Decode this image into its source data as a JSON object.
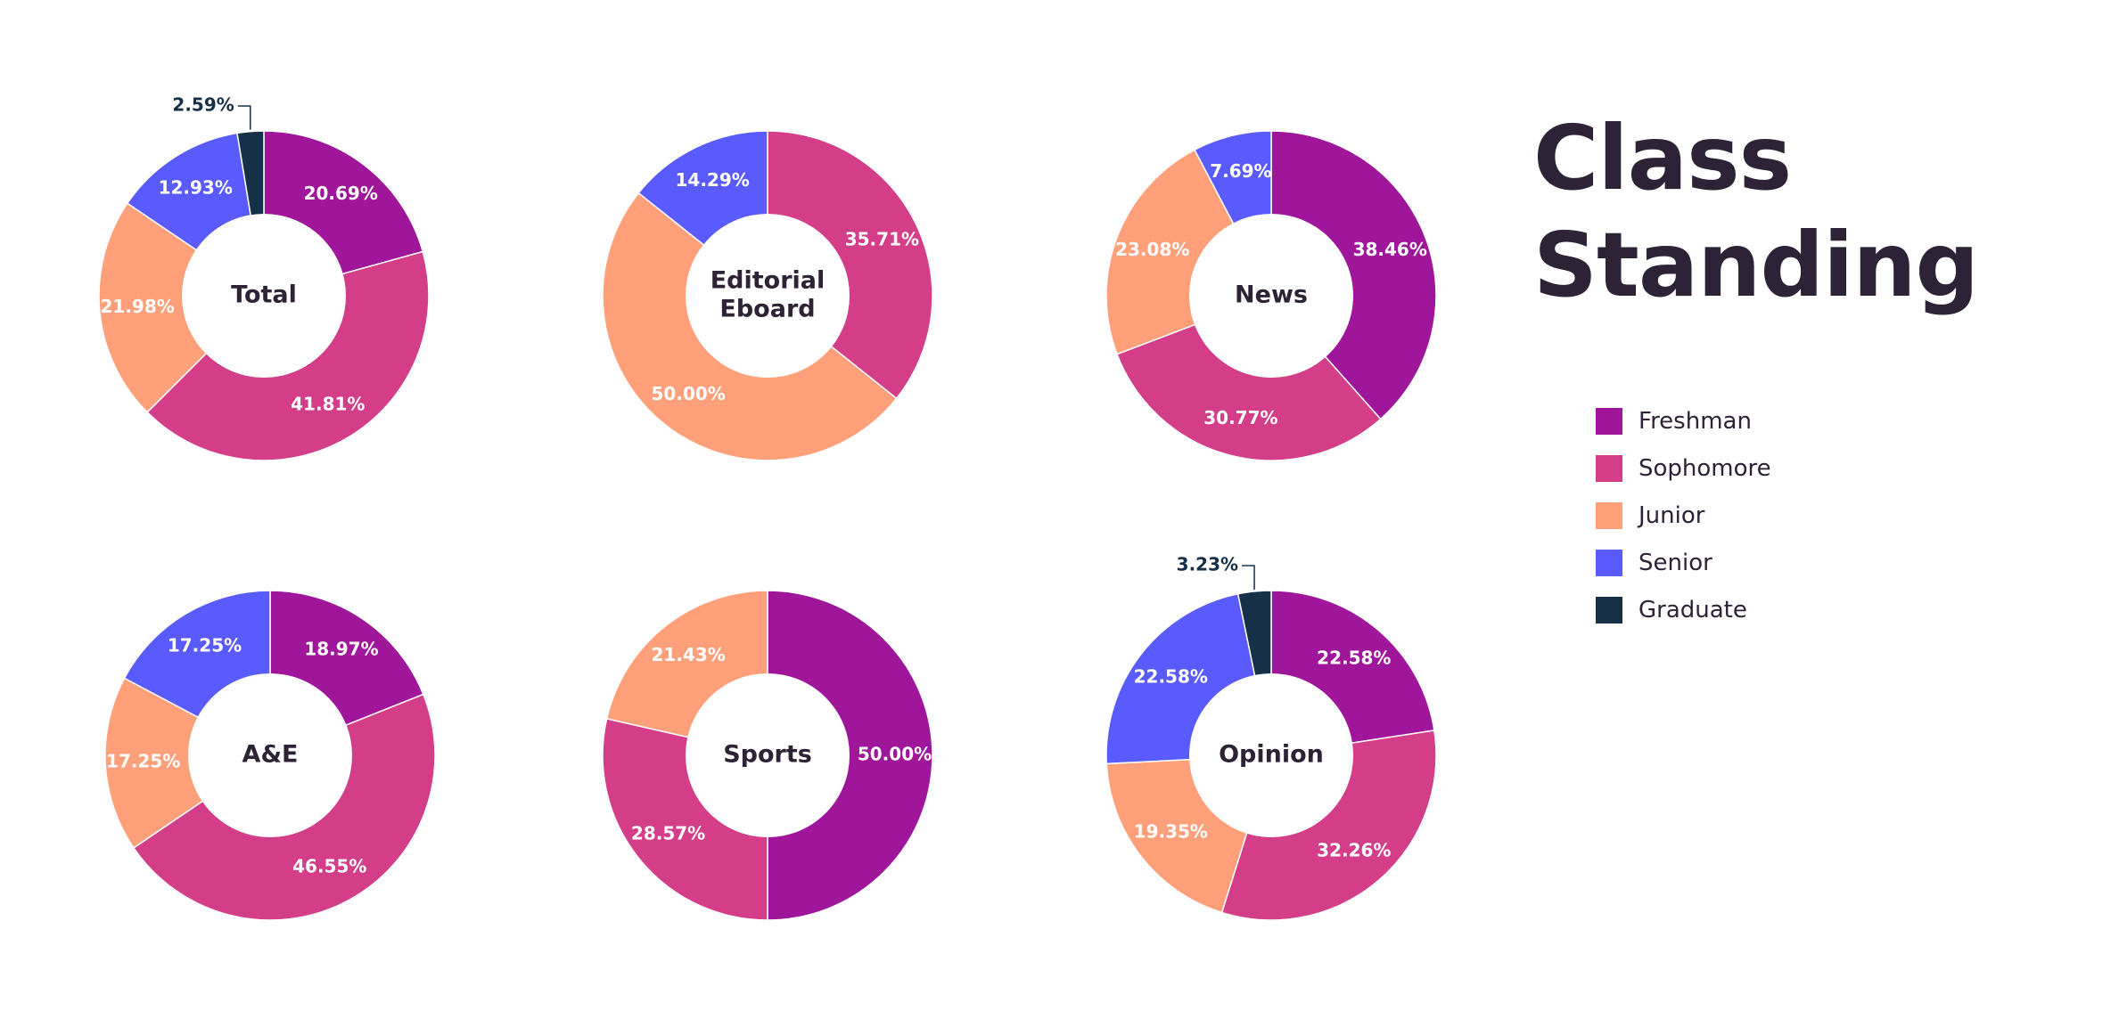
{
  "title": {
    "line1": "Class",
    "line2": "Standing"
  },
  "legend": [
    {
      "label": "Freshman",
      "color": "#A0169B"
    },
    {
      "label": "Sophomore",
      "color": "#D43E88"
    },
    {
      "label": "Junior",
      "color": "#FFA07A"
    },
    {
      "label": "Senior",
      "color": "#5A5BFF"
    },
    {
      "label": "Graduate",
      "color": "#163048"
    }
  ],
  "chart_data": [
    {
      "type": "pie",
      "title": "Total",
      "categories": [
        "Freshman",
        "Sophomore",
        "Junior",
        "Senior",
        "Graduate"
      ],
      "values": [
        20.69,
        41.81,
        21.98,
        12.93,
        2.59
      ],
      "labels": [
        "20.69%",
        "41.81%",
        "21.98%",
        "12.93%",
        "2.59%"
      ]
    },
    {
      "type": "pie",
      "title": "Editorial Eboard",
      "categories": [
        "Sophomore",
        "Junior",
        "Senior"
      ],
      "values": [
        35.71,
        50.0,
        14.29
      ],
      "labels": [
        "35.71%",
        "50.00%",
        "14.29%"
      ]
    },
    {
      "type": "pie",
      "title": "News",
      "categories": [
        "Freshman",
        "Sophomore",
        "Junior",
        "Senior"
      ],
      "values": [
        38.46,
        30.77,
        23.08,
        7.69
      ],
      "labels": [
        "38.46%",
        "30.77%",
        "23.08%",
        "7.69%"
      ]
    },
    {
      "type": "pie",
      "title": "A&E",
      "categories": [
        "Freshman",
        "Sophomore",
        "Junior",
        "Senior"
      ],
      "values": [
        18.97,
        46.55,
        17.25,
        17.25
      ],
      "labels": [
        "18.97%",
        "46.55%",
        "17.25%",
        "17.25%"
      ]
    },
    {
      "type": "pie",
      "title": "Sports",
      "categories": [
        "Freshman",
        "Sophomore",
        "Junior"
      ],
      "values": [
        50.0,
        28.57,
        21.43
      ],
      "labels": [
        "50.00%",
        "28.57%",
        "21.43%"
      ]
    },
    {
      "type": "pie",
      "title": "Opinion",
      "categories": [
        "Freshman",
        "Sophomore",
        "Junior",
        "Senior",
        "Graduate"
      ],
      "values": [
        22.58,
        32.26,
        19.35,
        22.58,
        3.23
      ],
      "labels": [
        "22.58%",
        "32.26%",
        "19.35%",
        "22.58%",
        "3.23%"
      ]
    }
  ]
}
